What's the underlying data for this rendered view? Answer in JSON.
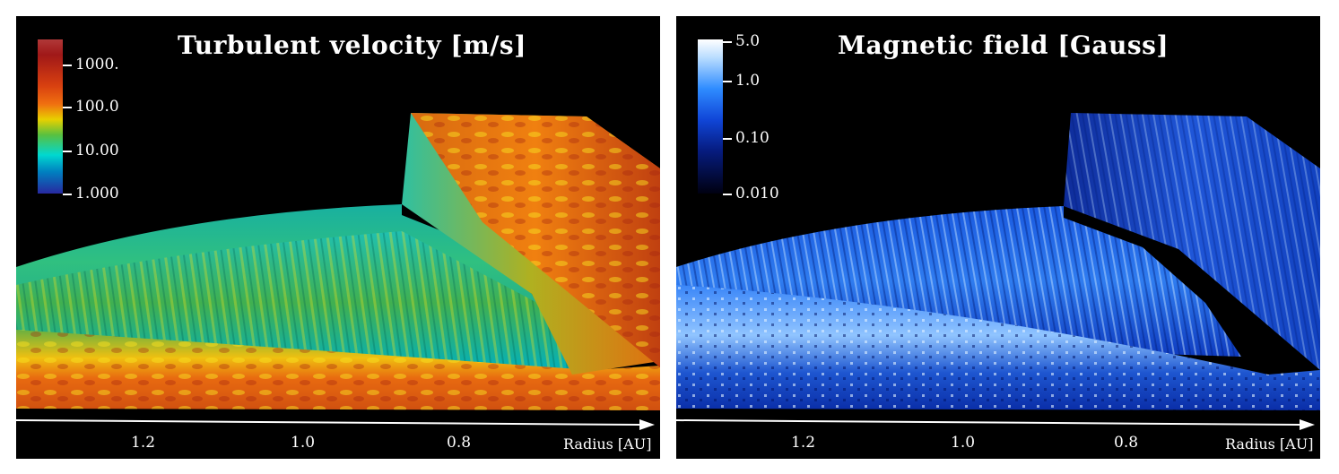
{
  "panels": [
    {
      "title": "Turbulent velocity [m/s]",
      "colorbar": {
        "ticks": [
          "1000.",
          "100.0",
          "10.00",
          "1.000"
        ],
        "colors": [
          "#a4222a",
          "#e25a10",
          "#f0d800",
          "#18b06a",
          "#00e0e0",
          "#2a2aa0"
        ]
      },
      "axis": {
        "ticks": [
          "1.2",
          "1.0",
          "0.8"
        ],
        "label": "Radius [AU]"
      }
    },
    {
      "title": "Magnetic field [Gauss]",
      "colorbar": {
        "ticks": [
          "5.0",
          "1.0",
          "0.10",
          "0.010"
        ],
        "colors": [
          "#ffffff",
          "#2f8cff",
          "#0a2ab0",
          "#000000"
        ]
      },
      "axis": {
        "ticks": [
          "1.2",
          "1.0",
          "0.8"
        ],
        "label": "Radius [AU]"
      }
    }
  ]
}
